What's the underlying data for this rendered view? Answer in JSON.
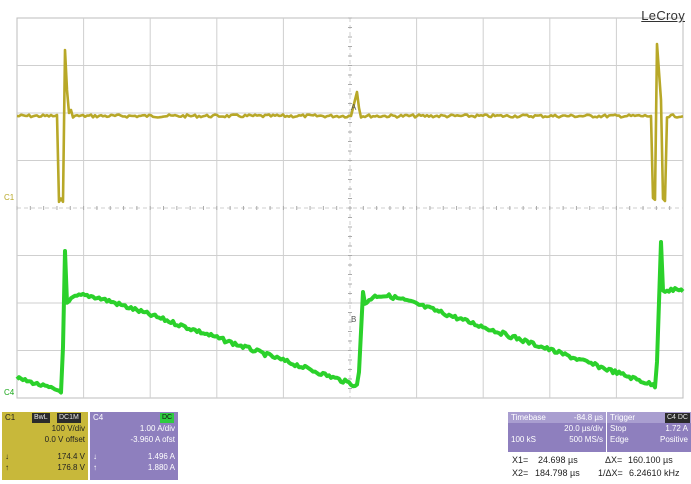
{
  "brand": "LeCroy",
  "trace_labels": {
    "c1": "C1",
    "c4": "C4"
  },
  "cursor_labels": {
    "a": "A",
    "b": "B"
  },
  "ch1_panel": {
    "title": "C1",
    "tag1": "BwL",
    "tag2": "DC1M",
    "vdiv": "100 V/div",
    "offset": "0.0 V offset",
    "cursor1": "174.4 V",
    "cursor2": "176.8 V",
    "icon1": "down-arrow-icon",
    "icon2": "up-arrow-icon"
  },
  "ch4_panel": {
    "title": "C4",
    "tag1": "DC",
    "adiv": "1.00 A/div",
    "offset": "-3.960 A ofst",
    "cursor1": "1.496 A",
    "cursor2": "1.880 A"
  },
  "timebase": {
    "label": "Timebase",
    "delay": "-84.8 µs",
    "tdiv": "20.0 µs/div",
    "samples": "100 kS",
    "rate": "500 MS/s"
  },
  "trigger": {
    "label": "Trigger",
    "tags": "C4 DC",
    "mode": "Stop",
    "level": "1.72 A",
    "type": "Edge",
    "slope": "Positive"
  },
  "cursors": {
    "x1_label": "X1=",
    "x1": "24.698 µs",
    "dx_label": "ΔX=",
    "dx": "160.100 µs",
    "x2_label": "X2=",
    "x2": "184.798 µs",
    "inv_label": "1/ΔX=",
    "inv": "6.24610 kHz"
  },
  "colors": {
    "ch1_trace": "#b8a828",
    "ch4_trace": "#2bd12b",
    "grid": "#cfcfcf",
    "ch1_panel": "#c8b83a",
    "ch4_panel": "#8e7fbe"
  }
}
